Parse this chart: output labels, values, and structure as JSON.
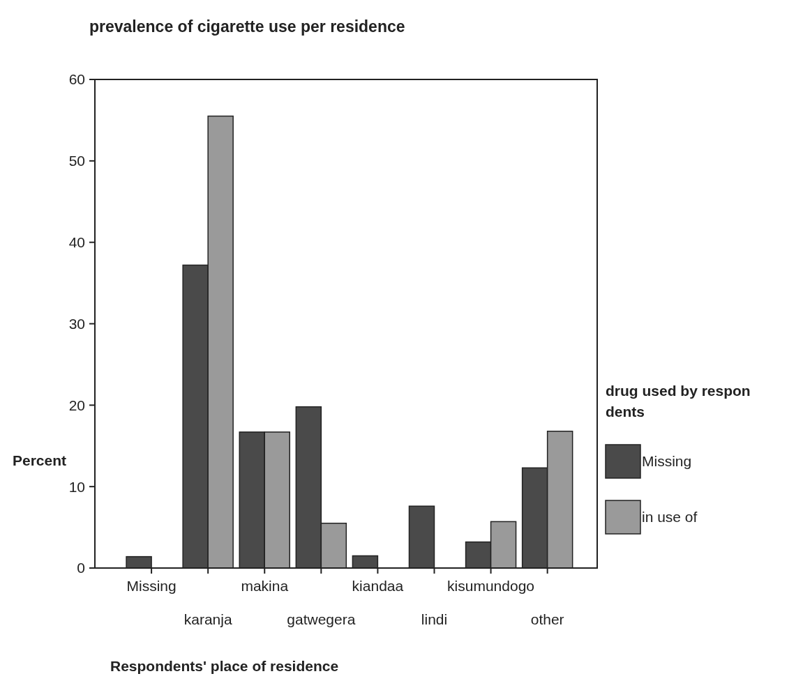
{
  "chart_data": {
    "type": "bar",
    "title": "prevalence of cigarette use  per residence",
    "xlabel": "Respondents' place of residence",
    "ylabel": "Percent",
    "legend_title": "drug used by respondents",
    "categories": [
      "Missing",
      "karanja",
      "makina",
      "gatwegera",
      "kiandaa",
      "lindi",
      "kisumundogo",
      "other"
    ],
    "series": [
      {
        "name": "Missing",
        "color": "#4a4a4a",
        "values": [
          1.4,
          37.2,
          16.7,
          19.8,
          1.5,
          7.6,
          3.2,
          12.3
        ]
      },
      {
        "name": "in use of",
        "color": "#9a9a9a",
        "values": [
          null,
          55.5,
          16.7,
          5.5,
          null,
          null,
          5.7,
          16.8
        ]
      }
    ],
    "ylim": [
      0,
      60
    ],
    "yticks": [
      0,
      10,
      20,
      30,
      40,
      50,
      60
    ],
    "grid": false,
    "legend": "right"
  }
}
